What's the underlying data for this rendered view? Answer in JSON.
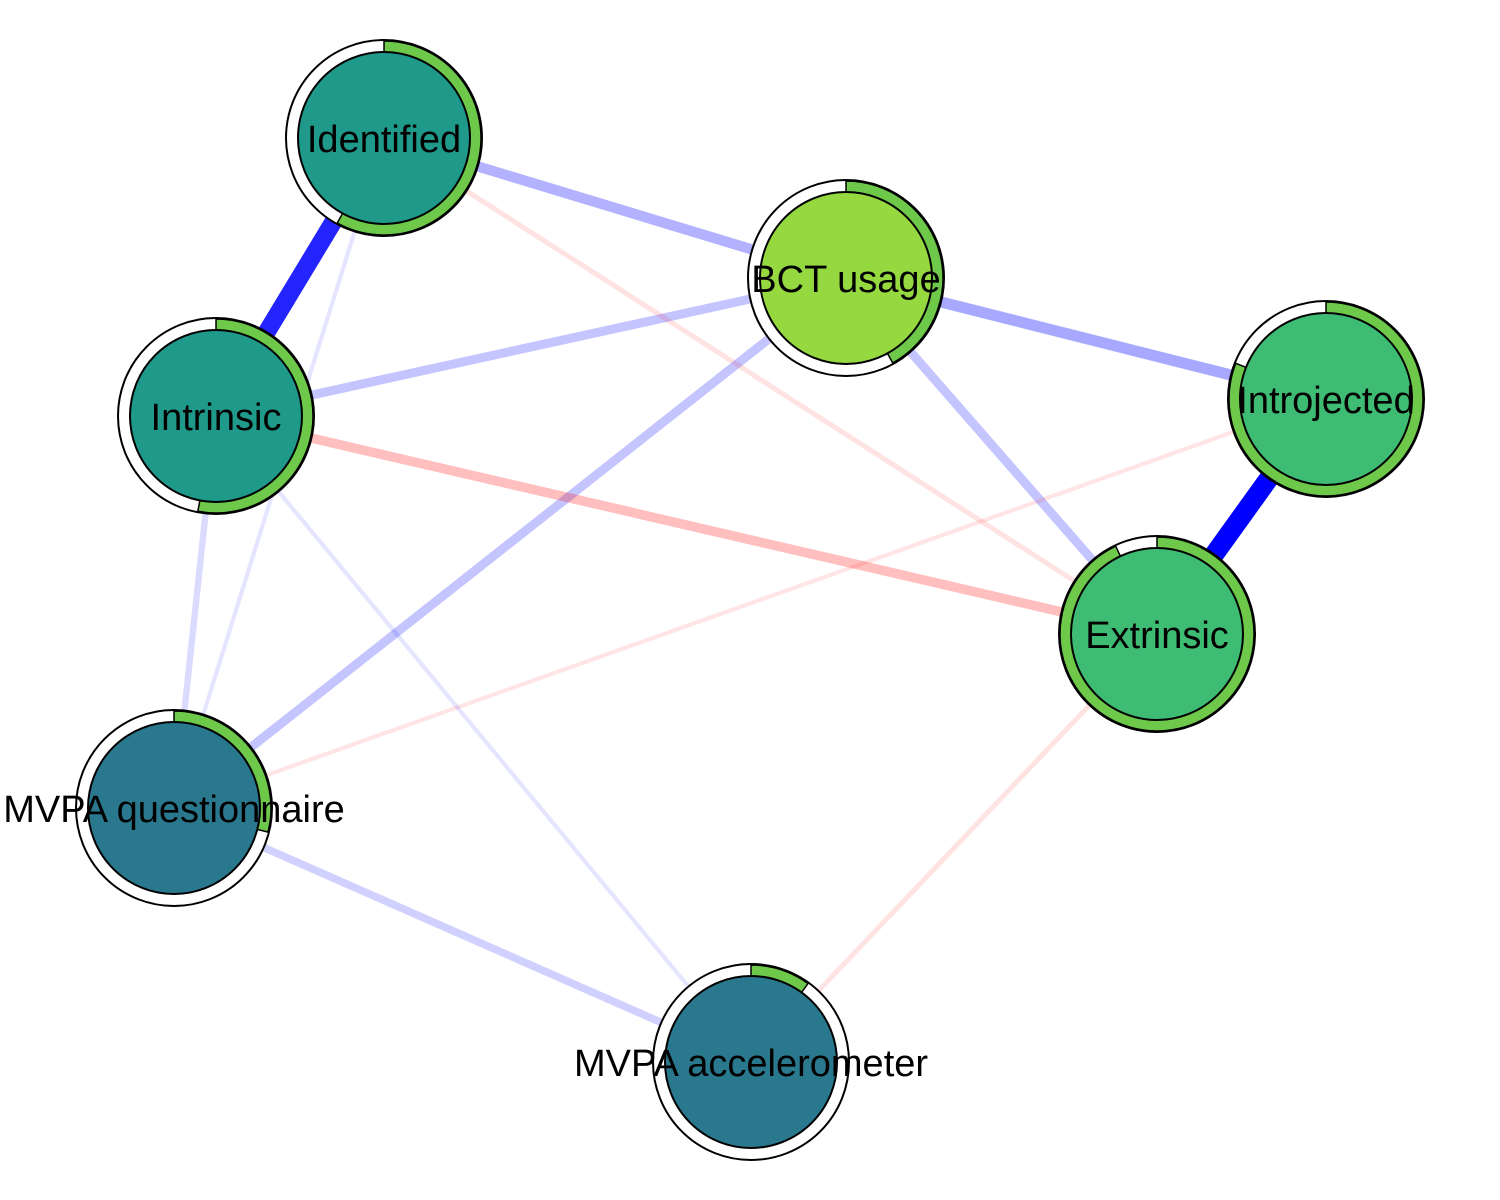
{
  "colors": {
    "edge_positive": "#0000ff",
    "edge_negative": "#ff0000",
    "pie": "#6ec94b",
    "border": "#000000"
  },
  "nodes": [
    {
      "id": "identified",
      "label": "Identified",
      "color": "#1f9a8a",
      "pie_fraction": 0.58
    },
    {
      "id": "bct",
      "label": "BCT usage",
      "color": "#95d840",
      "pie_fraction": 0.42
    },
    {
      "id": "intrinsic",
      "label": "Intrinsic",
      "color": "#1f9a8a",
      "pie_fraction": 0.53
    },
    {
      "id": "introjected",
      "label": "Introjected",
      "color": "#3fbc73",
      "pie_fraction": 0.81
    },
    {
      "id": "extrinsic",
      "label": "Extrinsic",
      "color": "#3fbc73",
      "pie_fraction": 0.93
    },
    {
      "id": "mvpa_q",
      "label": "MVPA questionnaire",
      "color": "#2a788e",
      "pie_fraction": 0.29
    },
    {
      "id": "mvpa_a",
      "label": "MVPA accelerometer",
      "color": "#2a788e",
      "pie_fraction": 0.1
    }
  ],
  "edges": [
    {
      "from": "identified",
      "to": "intrinsic",
      "weight": 0.72,
      "sign": "positive"
    },
    {
      "from": "introjected",
      "to": "extrinsic",
      "weight": 0.8,
      "sign": "positive"
    },
    {
      "from": "identified",
      "to": "bct",
      "weight": 0.38,
      "sign": "positive"
    },
    {
      "from": "bct",
      "to": "introjected",
      "weight": 0.42,
      "sign": "positive"
    },
    {
      "from": "bct",
      "to": "intrinsic",
      "weight": 0.32,
      "sign": "positive"
    },
    {
      "from": "bct",
      "to": "mvpa_q",
      "weight": 0.32,
      "sign": "positive"
    },
    {
      "from": "bct",
      "to": "extrinsic",
      "weight": 0.32,
      "sign": "positive"
    },
    {
      "from": "intrinsic",
      "to": "extrinsic",
      "weight": 0.34,
      "sign": "negative"
    },
    {
      "from": "mvpa_q",
      "to": "mvpa_a",
      "weight": 0.26,
      "sign": "positive"
    },
    {
      "from": "intrinsic",
      "to": "mvpa_q",
      "weight": 0.2,
      "sign": "positive"
    },
    {
      "from": "identified",
      "to": "extrinsic",
      "weight": 0.14,
      "sign": "negative"
    },
    {
      "from": "extrinsic",
      "to": "mvpa_a",
      "weight": 0.14,
      "sign": "negative"
    },
    {
      "from": "introjected",
      "to": "mvpa_q",
      "weight": 0.1,
      "sign": "negative"
    },
    {
      "from": "identified",
      "to": "mvpa_q",
      "weight": 0.1,
      "sign": "positive"
    },
    {
      "from": "intrinsic",
      "to": "mvpa_a",
      "weight": 0.1,
      "sign": "positive"
    }
  ]
}
